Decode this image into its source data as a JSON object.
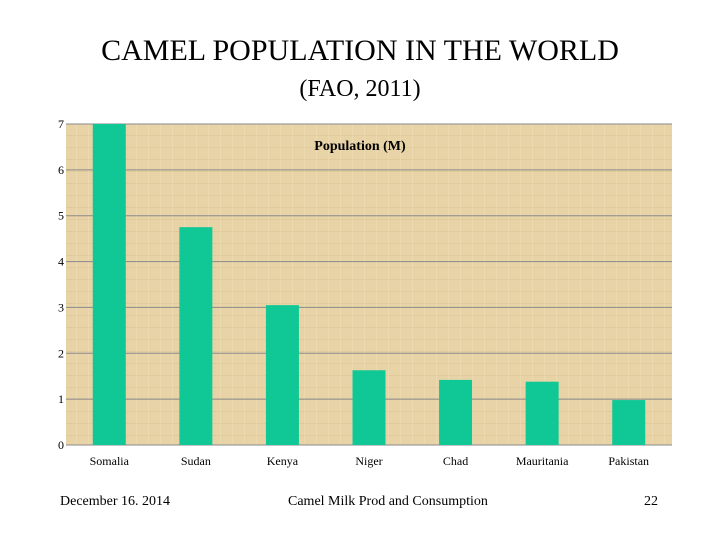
{
  "slide": {
    "title": "CAMEL POPULATION IN THE WORLD",
    "subtitle": "(FAO, 2011)"
  },
  "footer": {
    "date": "December 16. 2014",
    "center": "Camel Milk Prod and Consumption",
    "page": "22"
  },
  "colors": {
    "bar": "#10c896",
    "plot_bg": "#e8d3a6",
    "grid": "#8a8a8a"
  },
  "chart_data": {
    "type": "bar",
    "title": "Population (M)",
    "categories": [
      "Somalia",
      "Sudan",
      "Kenya",
      "Niger",
      "Chad",
      "Mauritania",
      "Pakistan"
    ],
    "values": [
      7.0,
      4.75,
      3.05,
      1.63,
      1.42,
      1.38,
      0.98
    ],
    "ylim": [
      0,
      7
    ],
    "yticks": [
      0,
      1,
      2,
      3,
      4,
      5,
      6,
      7
    ],
    "grid": true,
    "legend": false
  }
}
